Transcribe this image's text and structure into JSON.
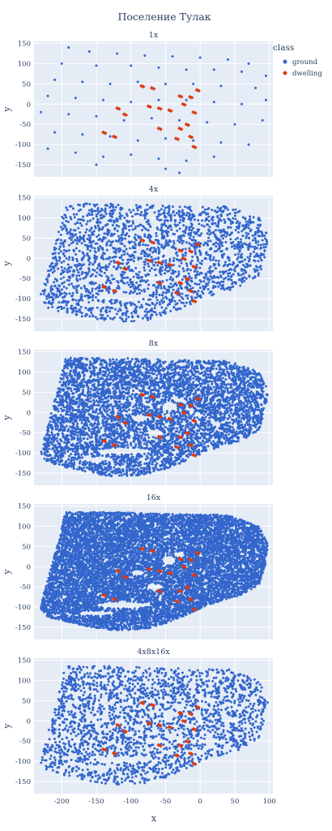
{
  "chart_data": {
    "type": "scatter",
    "title": "Поселение Тулак",
    "xlabel": "x",
    "ylabel": "y",
    "xlim": [
      -240,
      105
    ],
    "ylim": [
      -180,
      155
    ],
    "x_ticks": [
      -200,
      -150,
      -100,
      -50,
      0,
      50,
      100
    ],
    "y_ticks": [
      -150,
      -100,
      -50,
      0,
      50,
      100,
      150
    ],
    "grid": true,
    "legend": {
      "title": "class",
      "placement": "top-right",
      "entries": [
        {
          "name": "ground",
          "color": "#3366cc",
          "symbol": "circle"
        },
        {
          "name": "dwelling",
          "color": "#dc3912",
          "symbol": "diamond"
        }
      ]
    },
    "panels": [
      {
        "name": "1x",
        "density": "sparse",
        "series": [
          {
            "name": "ground",
            "color": "#3366cc",
            "points": [
              [
                -190,
                140
              ],
              [
                -160,
                130
              ],
              [
                -120,
                125
              ],
              [
                -80,
                120
              ],
              [
                -40,
                118
              ],
              [
                0,
                115
              ],
              [
                40,
                110
              ],
              [
                70,
                100
              ],
              [
                -200,
                100
              ],
              [
                -150,
                95
              ],
              [
                -100,
                95
              ],
              [
                -60,
                90
              ],
              [
                -20,
                85
              ],
              [
                20,
                85
              ],
              [
                60,
                80
              ],
              [
                95,
                70
              ],
              [
                -210,
                60
              ],
              [
                -170,
                55
              ],
              [
                -130,
                50
              ],
              [
                -90,
                55
              ],
              [
                -50,
                50
              ],
              [
                -10,
                50
              ],
              [
                30,
                45
              ],
              [
                80,
                40
              ],
              [
                -220,
                20
              ],
              [
                -180,
                15
              ],
              [
                -140,
                10
              ],
              [
                -100,
                5
              ],
              [
                -60,
                10
              ],
              [
                -20,
                10
              ],
              [
                20,
                5
              ],
              [
                60,
                0
              ],
              [
                95,
                10
              ],
              [
                -230,
                -20
              ],
              [
                -190,
                -25
              ],
              [
                -150,
                -30
              ],
              [
                -110,
                -40
              ],
              [
                -70,
                -35
              ],
              [
                -30,
                -40
              ],
              [
                10,
                -45
              ],
              [
                50,
                -50
              ],
              [
                90,
                -40
              ],
              [
                -210,
                -70
              ],
              [
                -170,
                -75
              ],
              [
                -130,
                -80
              ],
              [
                -90,
                -90
              ],
              [
                -50,
                -85
              ],
              [
                -10,
                -90
              ],
              [
                30,
                -95
              ],
              [
                70,
                -100
              ],
              [
                -220,
                -110
              ],
              [
                -180,
                -120
              ],
              [
                -140,
                -130
              ],
              [
                -100,
                -125
              ],
              [
                -60,
                -135
              ],
              [
                -20,
                -140
              ],
              [
                20,
                -130
              ],
              [
                -150,
                -150
              ],
              [
                -50,
                -160
              ],
              [
                -30,
                -170
              ]
            ]
          },
          {
            "name": "dwelling",
            "color": "#dc3912",
            "points": [
              [
                -85,
                45
              ],
              [
                -70,
                40
              ],
              [
                -30,
                20
              ],
              [
                -15,
                18
              ],
              [
                -5,
                35
              ],
              [
                -120,
                -10
              ],
              [
                -110,
                -25
              ],
              [
                -75,
                -5
              ],
              [
                -60,
                -10
              ],
              [
                -45,
                -15
              ],
              [
                -25,
                0
              ],
              [
                -10,
                -20
              ],
              [
                -20,
                -50
              ],
              [
                -30,
                -60
              ],
              [
                -140,
                -70
              ],
              [
                -125,
                -80
              ],
              [
                -60,
                -60
              ],
              [
                -35,
                -85
              ],
              [
                -15,
                -80
              ],
              [
                -10,
                -105
              ]
            ]
          }
        ]
      },
      {
        "name": "4x",
        "density": "medium",
        "series": [
          {
            "name": "ground",
            "color": "#3366cc",
            "points": []
          },
          {
            "name": "dwelling",
            "color": "#dc3912",
            "points": [
              [
                -85,
                45
              ],
              [
                -70,
                40
              ],
              [
                -30,
                20
              ],
              [
                -15,
                18
              ],
              [
                -5,
                35
              ],
              [
                -120,
                -10
              ],
              [
                -110,
                -25
              ],
              [
                -75,
                -5
              ],
              [
                -60,
                -10
              ],
              [
                -45,
                -15
              ],
              [
                -25,
                0
              ],
              [
                -10,
                -20
              ],
              [
                -20,
                -50
              ],
              [
                -30,
                -60
              ],
              [
                -140,
                -70
              ],
              [
                -125,
                -80
              ],
              [
                -60,
                -60
              ],
              [
                -35,
                -85
              ],
              [
                -15,
                -80
              ],
              [
                -10,
                -105
              ]
            ]
          }
        ]
      },
      {
        "name": "8x",
        "density": "dense",
        "series": [
          {
            "name": "ground",
            "color": "#3366cc",
            "points": []
          },
          {
            "name": "dwelling",
            "color": "#dc3912",
            "points": [
              [
                -85,
                45
              ],
              [
                -70,
                40
              ],
              [
                -30,
                20
              ],
              [
                -15,
                18
              ],
              [
                -5,
                35
              ],
              [
                -120,
                -10
              ],
              [
                -110,
                -25
              ],
              [
                -75,
                -5
              ],
              [
                -60,
                -10
              ],
              [
                -45,
                -15
              ],
              [
                -25,
                0
              ],
              [
                -10,
                -20
              ],
              [
                -20,
                -50
              ],
              [
                -30,
                -60
              ],
              [
                -140,
                -70
              ],
              [
                -125,
                -80
              ],
              [
                -60,
                -60
              ],
              [
                -35,
                -85
              ],
              [
                -15,
                -80
              ],
              [
                -10,
                -105
              ]
            ]
          }
        ]
      },
      {
        "name": "16x",
        "density": "very-dense",
        "series": [
          {
            "name": "ground",
            "color": "#3366cc",
            "points": []
          },
          {
            "name": "dwelling",
            "color": "#dc3912",
            "points": [
              [
                -85,
                45
              ],
              [
                -70,
                40
              ],
              [
                -30,
                20
              ],
              [
                -15,
                18
              ],
              [
                -5,
                35
              ],
              [
                -120,
                -10
              ],
              [
                -110,
                -25
              ],
              [
                -75,
                -5
              ],
              [
                -60,
                -10
              ],
              [
                -45,
                -15
              ],
              [
                -25,
                0
              ],
              [
                -10,
                -20
              ],
              [
                -20,
                -50
              ],
              [
                -30,
                -60
              ],
              [
                -140,
                -70
              ],
              [
                -125,
                -80
              ],
              [
                -60,
                -60
              ],
              [
                -35,
                -85
              ],
              [
                -15,
                -80
              ],
              [
                -10,
                -105
              ]
            ]
          }
        ]
      },
      {
        "name": "4x8x16x",
        "density": "medium",
        "series": [
          {
            "name": "ground",
            "color": "#3366cc",
            "points": []
          },
          {
            "name": "dwelling",
            "color": "#dc3912",
            "points": [
              [
                -85,
                45
              ],
              [
                -70,
                40
              ],
              [
                -30,
                20
              ],
              [
                -15,
                18
              ],
              [
                -5,
                35
              ],
              [
                -120,
                -10
              ],
              [
                -110,
                -25
              ],
              [
                -75,
                -5
              ],
              [
                -60,
                -10
              ],
              [
                -45,
                -15
              ],
              [
                -25,
                0
              ],
              [
                -10,
                -20
              ],
              [
                -20,
                -50
              ],
              [
                -30,
                -60
              ],
              [
                -140,
                -70
              ],
              [
                -125,
                -80
              ],
              [
                -60,
                -60
              ],
              [
                -35,
                -85
              ],
              [
                -15,
                -80
              ],
              [
                -10,
                -105
              ]
            ]
          }
        ]
      }
    ]
  }
}
